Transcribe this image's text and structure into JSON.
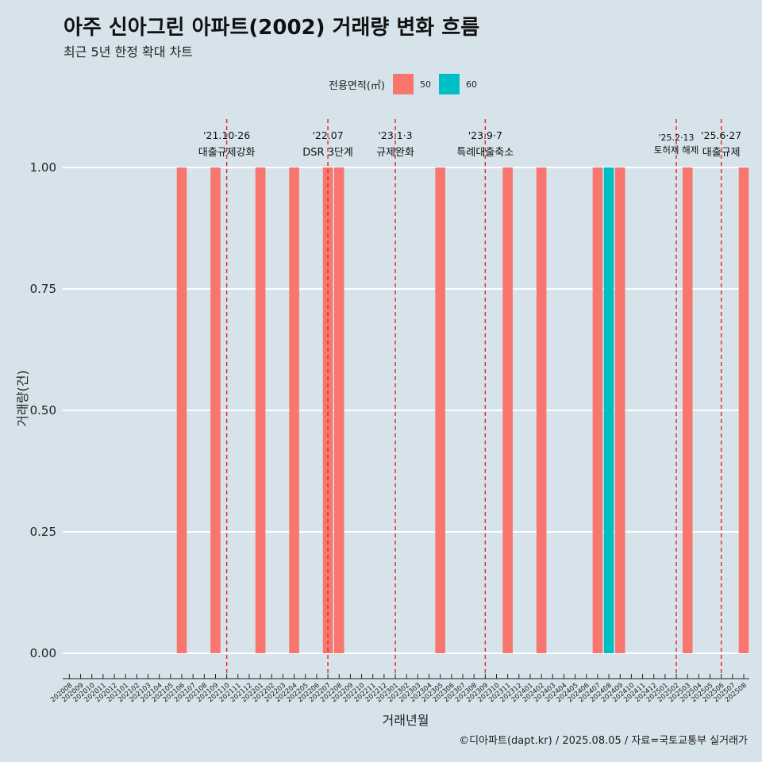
{
  "title": "아주 신아그린 아파트(2002) 거래량 변화 흐름",
  "subtitle": "최근 5년 한정 확대 차트",
  "legend": {
    "title": "전용면적(㎡)",
    "items": [
      {
        "label": "50",
        "color": "#F8766D"
      },
      {
        "label": "60",
        "color": "#00BFC4"
      }
    ]
  },
  "footer": "©디아파트(dapt.kr) / 2025.08.05 / 자료=국토교통부 실거래가",
  "chart_data": {
    "type": "bar",
    "xlabel": "거래년월",
    "ylabel": "거래량(건)",
    "ylim": [
      0,
      1
    ],
    "yticks": [
      "0.00",
      "0.25",
      "0.50",
      "0.75",
      "1.00"
    ],
    "categories": [
      "202008",
      "202009",
      "202010",
      "202011",
      "202012",
      "202101",
      "202102",
      "202103",
      "202104",
      "202105",
      "202106",
      "202107",
      "202108",
      "202109",
      "202110",
      "202111",
      "202112",
      "202201",
      "202202",
      "202203",
      "202204",
      "202205",
      "202206",
      "202207",
      "202208",
      "202209",
      "202210",
      "202211",
      "202212",
      "202301",
      "202302",
      "202303",
      "202304",
      "202305",
      "202306",
      "202307",
      "202308",
      "202309",
      "202310",
      "202311",
      "202312",
      "202401",
      "202402",
      "202403",
      "202404",
      "202405",
      "202406",
      "202407",
      "202408",
      "202409",
      "202410",
      "202411",
      "202412",
      "202501",
      "202502",
      "202503",
      "202504",
      "202505",
      "202506",
      "202507",
      "202508"
    ],
    "series": [
      {
        "name": "50",
        "color": "#F8766D",
        "points": [
          [
            "202106",
            1
          ],
          [
            "202109",
            1
          ],
          [
            "202201",
            1
          ],
          [
            "202204",
            1
          ],
          [
            "202207",
            1
          ],
          [
            "202208",
            1
          ],
          [
            "202305",
            1
          ],
          [
            "202311",
            1
          ],
          [
            "202402",
            1
          ],
          [
            "202407",
            1
          ],
          [
            "202409",
            1
          ],
          [
            "202503",
            1
          ],
          [
            "202508",
            1
          ]
        ]
      },
      {
        "name": "60",
        "color": "#00BFC4",
        "points": [
          [
            "202408",
            1
          ]
        ]
      }
    ],
    "events": [
      {
        "at": "202110",
        "date": "'21.10·26",
        "label": "대출규제강화"
      },
      {
        "at": "202207",
        "date": "'22.07",
        "label": "DSR 3단계"
      },
      {
        "at": "202301",
        "date": "'23.1·3",
        "label": "규제완화"
      },
      {
        "at": "202309",
        "date": "'23.9·7",
        "label": "특례대출축소"
      },
      {
        "at": "202502",
        "date": "'25.2·13",
        "label": "토허제 해제"
      },
      {
        "at": "202506",
        "date": "'25.6·27",
        "label": "대출규제"
      }
    ]
  }
}
